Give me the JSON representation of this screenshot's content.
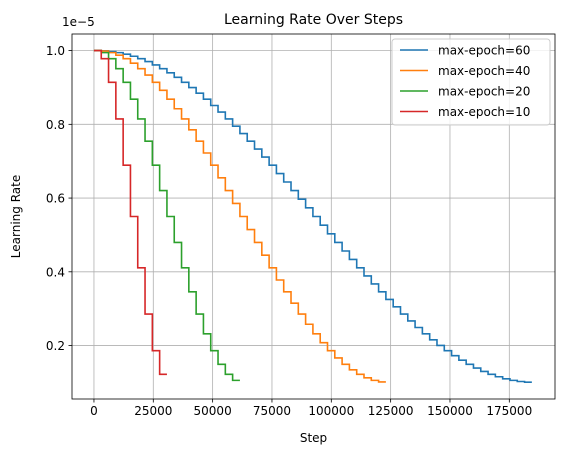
{
  "chart_data": {
    "type": "line",
    "title": "Learning Rate Over Steps",
    "xlabel": "Step",
    "ylabel": "Learning Rate",
    "offset_text": "1e−5",
    "xlim": [
      -9250,
      194250
    ],
    "ylim": [
      0.055,
      1.045
    ],
    "xticks": [
      0,
      25000,
      50000,
      75000,
      100000,
      125000,
      150000,
      175000
    ],
    "xtick_labels": [
      "0",
      "25000",
      "50000",
      "75000",
      "100000",
      "125000",
      "150000",
      "175000"
    ],
    "yticks": [
      0.2,
      0.4,
      0.6,
      0.8,
      1.0
    ],
    "ytick_labels": [
      "0.2",
      "0.4",
      "0.6",
      "0.8",
      "1.0"
    ],
    "grid": true,
    "legend_position": "top-right",
    "step_style": "post",
    "series": [
      {
        "name": "max-epoch=60",
        "color": "#1f77b4",
        "epochs": 60,
        "step_per_epoch": 3075,
        "lr_max": 1.0,
        "lr_min": 0.1
      },
      {
        "name": "max-epoch=40",
        "color": "#ff7f0e",
        "epochs": 40,
        "step_per_epoch": 3075,
        "lr_max": 1.0,
        "lr_min": 0.1
      },
      {
        "name": "max-epoch=20",
        "color": "#2ca02c",
        "epochs": 20,
        "step_per_epoch": 3075,
        "lr_max": 1.0,
        "lr_min": 0.1
      },
      {
        "name": "max-epoch=10",
        "color": "#d62728",
        "epochs": 10,
        "step_per_epoch": 3075,
        "lr_max": 1.0,
        "lr_min": 0.1
      }
    ]
  }
}
